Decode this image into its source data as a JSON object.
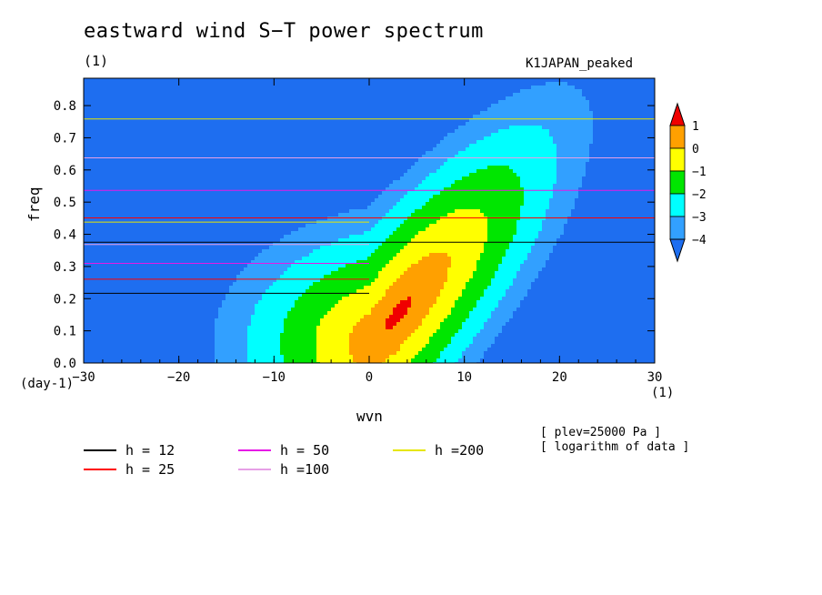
{
  "header": {
    "title": "eastward wind S−T power spectrum",
    "unit": "(1)",
    "case": "K1JAPAN_peaked"
  },
  "notes": {
    "plev": "[ plev=25000 Pa ]",
    "log": "[ logarithm of data ]"
  },
  "chart_data": {
    "type": "heatmap",
    "title": "eastward wind S−T power spectrum",
    "xlabel": "wvn",
    "ylabel": "freq",
    "xunit": "(1)",
    "yunit": "(day-1)",
    "xlim": [
      -30,
      30
    ],
    "ylim": [
      0,
      0.885
    ],
    "xticks": [
      -30,
      -20,
      -10,
      0,
      10,
      20,
      30
    ],
    "xtick_labels": [
      "−30",
      "−20",
      "−10",
      "0",
      "10",
      "20",
      "30"
    ],
    "yticks": [
      0.0,
      0.1,
      0.2,
      0.3,
      0.4,
      0.5,
      0.6,
      0.7,
      0.8
    ],
    "ytick_labels": [
      "0.0",
      "0.1",
      "0.2",
      "0.3",
      "0.4",
      "0.5",
      "0.6",
      "0.7",
      "0.8"
    ],
    "colorbar": {
      "levels": [
        -4,
        -3,
        -2,
        -1,
        0,
        1
      ],
      "labels": [
        "−4",
        "−3",
        "−2",
        "−1",
        "0",
        "1"
      ],
      "colors": [
        "#1e6ef0",
        "#32a0ff",
        "#00ffff",
        "#00e600",
        "#ffff00",
        "#ffa000",
        "#f00000"
      ]
    },
    "field_peak": {
      "wvn": 3,
      "freq": 0.06
    },
    "dispersion_curves": [
      {
        "name": "h = 12",
        "h": 12,
        "color": "#000000"
      },
      {
        "name": "h = 25",
        "h": 25,
        "color": "#ff0000"
      },
      {
        "name": "h = 50",
        "h": 50,
        "color": "#e619e6"
      },
      {
        "name": "h =100",
        "h": 100,
        "color": "#e6a0e6"
      },
      {
        "name": "h =200",
        "h": 200,
        "color": "#e6e600"
      }
    ]
  }
}
